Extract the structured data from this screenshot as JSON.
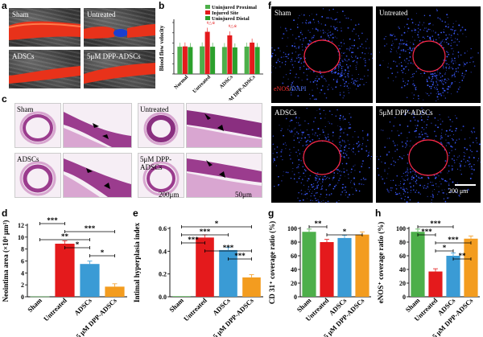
{
  "panels": {
    "a": {
      "label": "a",
      "tiles": [
        "Sham",
        "Untreated",
        "ADSCs",
        "5μM DPP-ADSCs"
      ]
    },
    "b": {
      "label": "b",
      "legend": [
        "Uninjured Proximal",
        "Injured Site",
        "Uninjured Distal"
      ],
      "legend_colors": [
        "#4daf4a",
        "#e41a1c",
        "#2ca02c"
      ],
      "ylabel": "Blood flow velocity",
      "annotations": [
        "#△※",
        "#△※"
      ]
    },
    "c": {
      "label": "c",
      "tiles": [
        "Sham",
        "Untreated",
        "ADSCs",
        "5μM DPP-ADSCs"
      ],
      "scale_left": "200μm",
      "scale_right": "50μm"
    },
    "d": {
      "label": "d"
    },
    "e": {
      "label": "e"
    },
    "f": {
      "label": "f",
      "tiles": [
        "Sham",
        "Untreated",
        "ADSCs",
        "5μM DPP-ADSCs"
      ],
      "stain_red": "eNOS",
      "stain_sep": "/",
      "stain_blue": "DAPI",
      "scale": "200 μm"
    },
    "g": {
      "label": "g"
    },
    "h": {
      "label": "h"
    }
  },
  "chart_data": [
    {
      "panel": "b",
      "type": "bar",
      "ylabel": "Blood flow velocity",
      "categories": [
        "Normal",
        "Untreated",
        "ADSCs",
        "5 μM DPP-ADSCs"
      ],
      "ylim": [
        0,
        500
      ],
      "yticks": [
        0,
        100,
        200,
        300,
        400,
        500
      ],
      "series": [
        {
          "name": "Uninjured Proximal",
          "values": [
            265,
            268,
            262,
            266
          ]
        },
        {
          "name": "Injured Site",
          "values": [
            268,
            410,
            375,
            305
          ]
        },
        {
          "name": "Uninjured Distal",
          "values": [
            262,
            265,
            258,
            262
          ]
        }
      ]
    },
    {
      "panel": "d",
      "type": "bar",
      "ylabel": "Neointima area (×10⁴ μm²)",
      "categories": [
        "Sham",
        "Untreated",
        "ADSCs",
        "5 μM DPP-ADSCs"
      ],
      "ylim": [
        0,
        12
      ],
      "yticks": [
        0,
        2,
        4,
        6,
        8,
        10,
        12
      ],
      "values": [
        0.05,
        8.9,
        5.5,
        1.7
      ],
      "colors": [
        "#4daf4a",
        "#e41a1c",
        "#3a9bd5",
        "#f39c1f"
      ],
      "significance": [
        {
          "from": 0,
          "to": 1,
          "text": "***"
        },
        {
          "from": 1,
          "to": 3,
          "text": "***"
        },
        {
          "from": 0,
          "to": 2,
          "text": "**"
        },
        {
          "from": 1,
          "to": 2,
          "text": "*"
        },
        {
          "from": 2,
          "to": 3,
          "text": "*"
        }
      ]
    },
    {
      "panel": "e",
      "type": "bar",
      "ylabel": "Intimal hyperplasia index",
      "categories": [
        "Sham",
        "Untreated",
        "ADSCs",
        "5 μM DPP-ADSCs"
      ],
      "ylim": [
        0,
        0.6
      ],
      "yticks": [
        0.0,
        0.2,
        0.4,
        0.6
      ],
      "values": [
        0.005,
        0.52,
        0.41,
        0.17
      ],
      "colors": [
        "#4daf4a",
        "#e41a1c",
        "#3a9bd5",
        "#f39c1f"
      ],
      "significance": [
        {
          "from": 0,
          "to": 3,
          "text": "*"
        },
        {
          "from": 0,
          "to": 2,
          "text": "***"
        },
        {
          "from": 0,
          "to": 1,
          "text": "***"
        },
        {
          "from": 1,
          "to": 3,
          "text": "***"
        },
        {
          "from": 2,
          "to": 3,
          "text": "***"
        }
      ]
    },
    {
      "panel": "g",
      "type": "bar",
      "ylabel": "CD 31⁺ coverage ratio (%)",
      "categories": [
        "Sham",
        "Untreated",
        "ADSCs",
        "5 μM DPP-ADSCs"
      ],
      "ylim": [
        0,
        100
      ],
      "yticks": [
        0,
        20,
        40,
        60,
        80,
        100
      ],
      "values": [
        95,
        80,
        86,
        91
      ],
      "colors": [
        "#4daf4a",
        "#e41a1c",
        "#3a9bd5",
        "#f39c1f"
      ],
      "significance": [
        {
          "from": 0,
          "to": 1,
          "text": "**"
        },
        {
          "from": 1,
          "to": 3,
          "text": "*"
        }
      ]
    },
    {
      "panel": "h",
      "type": "bar",
      "ylabel": "eNOS⁺ coverage ratio (%)",
      "categories": [
        "Sham",
        "Untreated",
        "ADSCs",
        "5 μM DPP-ADSCs"
      ],
      "ylim": [
        0,
        100
      ],
      "yticks": [
        0,
        20,
        40,
        60,
        80,
        100
      ],
      "values": [
        95,
        37,
        60,
        85
      ],
      "colors": [
        "#4daf4a",
        "#e41a1c",
        "#3a9bd5",
        "#f39c1f"
      ],
      "significance": [
        {
          "from": 0,
          "to": 2,
          "text": "***"
        },
        {
          "from": 0,
          "to": 1,
          "text": "***"
        },
        {
          "from": 1,
          "to": 3,
          "text": "***"
        },
        {
          "from": 1,
          "to": 2,
          "text": "*"
        },
        {
          "from": 2,
          "to": 3,
          "text": "**"
        }
      ]
    }
  ]
}
